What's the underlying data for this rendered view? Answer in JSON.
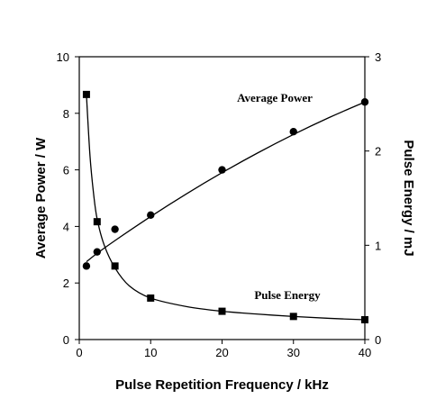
{
  "chart_data": {
    "type": "scatter",
    "xlabel": "Pulse Repetition Frequency / kHz",
    "ylabel_left": "Average Power / W",
    "ylabel_right": "Pulse Energy / mJ",
    "xlim": [
      0,
      40
    ],
    "ylim_left": [
      0,
      10
    ],
    "ylim_right": [
      0,
      3
    ],
    "x_ticks": [
      0,
      10,
      20,
      30,
      40
    ],
    "y_left_ticks": [
      0,
      2,
      4,
      6,
      8,
      10
    ],
    "y_right_ticks": [
      0,
      1,
      2,
      3
    ],
    "grid": false,
    "series": [
      {
        "name": "Average Power",
        "axis": "left",
        "marker": "circle",
        "points": [
          {
            "x": 1,
            "y": 2.6
          },
          {
            "x": 2.5,
            "y": 3.1
          },
          {
            "x": 5,
            "y": 3.9
          },
          {
            "x": 10,
            "y": 4.4
          },
          {
            "x": 20,
            "y": 6.0
          },
          {
            "x": 30,
            "y": 7.35
          },
          {
            "x": 40,
            "y": 8.4
          }
        ],
        "fit": [
          {
            "x": 1,
            "y": 2.75
          },
          {
            "x": 2.5,
            "y": 3.05
          },
          {
            "x": 5,
            "y": 3.5
          },
          {
            "x": 10,
            "y": 4.35
          },
          {
            "x": 15,
            "y": 5.15
          },
          {
            "x": 20,
            "y": 5.9
          },
          {
            "x": 25,
            "y": 6.6
          },
          {
            "x": 30,
            "y": 7.25
          },
          {
            "x": 35,
            "y": 7.85
          },
          {
            "x": 40,
            "y": 8.4
          }
        ]
      },
      {
        "name": "Pulse Energy",
        "axis": "right",
        "marker": "square",
        "points": [
          {
            "x": 1,
            "y": 2.6
          },
          {
            "x": 2.5,
            "y": 1.25
          },
          {
            "x": 5,
            "y": 0.78
          },
          {
            "x": 10,
            "y": 0.44
          },
          {
            "x": 20,
            "y": 0.3
          },
          {
            "x": 30,
            "y": 0.245
          },
          {
            "x": 40,
            "y": 0.21
          }
        ],
        "fit": [
          {
            "x": 1,
            "y": 2.6
          },
          {
            "x": 1.5,
            "y": 1.95
          },
          {
            "x": 2,
            "y": 1.55
          },
          {
            "x": 2.5,
            "y": 1.28
          },
          {
            "x": 3.5,
            "y": 1.0
          },
          {
            "x": 5,
            "y": 0.76
          },
          {
            "x": 7,
            "y": 0.57
          },
          {
            "x": 10,
            "y": 0.44
          },
          {
            "x": 15,
            "y": 0.35
          },
          {
            "x": 20,
            "y": 0.3
          },
          {
            "x": 25,
            "y": 0.27
          },
          {
            "x": 30,
            "y": 0.245
          },
          {
            "x": 35,
            "y": 0.225
          },
          {
            "x": 40,
            "y": 0.21
          }
        ]
      }
    ],
    "annotations": [
      {
        "text": "Average Power",
        "near_series": "Average Power"
      },
      {
        "text": "Pulse Energy",
        "near_series": "Pulse Energy"
      }
    ]
  }
}
